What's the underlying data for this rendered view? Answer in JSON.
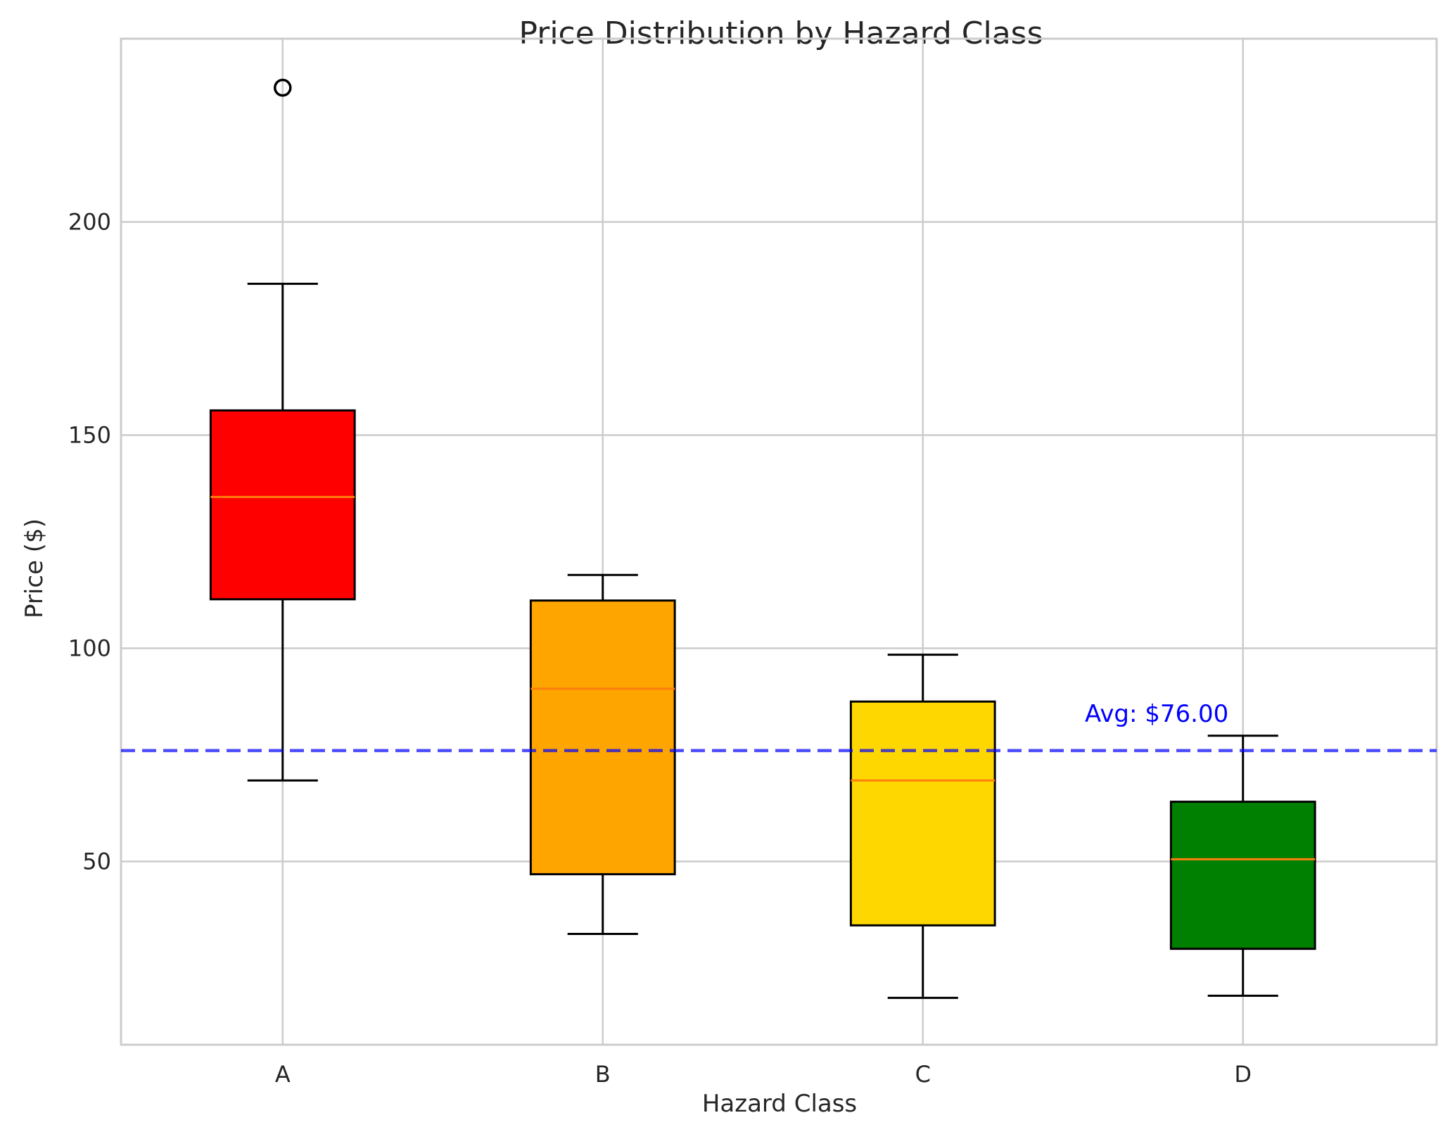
{
  "chart_data": {
    "type": "box",
    "title": "Price Distribution by Hazard Class",
    "xlabel": "Hazard Class",
    "ylabel": "Price ($)",
    "ylim": [
      7,
      243
    ],
    "yticks": [
      50,
      100,
      150,
      200
    ],
    "grid": true,
    "categories": [
      "A",
      "B",
      "C",
      "D"
    ],
    "boxes": [
      {
        "category": "A",
        "whisker_low": 69,
        "q1": 111.5,
        "median": 135.5,
        "q3": 155.8,
        "whisker_high": 185.5,
        "outliers": [
          231.5
        ],
        "color": "#ff0000"
      },
      {
        "category": "B",
        "whisker_low": 33,
        "q1": 47,
        "median": 90.5,
        "q3": 111.2,
        "whisker_high": 117.2,
        "outliers": [],
        "color": "#ffa500"
      },
      {
        "category": "C",
        "whisker_low": 18,
        "q1": 35,
        "median": 69,
        "q3": 87.5,
        "whisker_high": 98.5,
        "outliers": [],
        "color": "#ffd700"
      },
      {
        "category": "D",
        "whisker_low": 18.5,
        "q1": 29.5,
        "median": 50.5,
        "q3": 64,
        "whisker_high": 79.5,
        "outliers": [],
        "color": "#008000"
      }
    ],
    "reference_line": {
      "value": 76,
      "label": "Avg: $76.00",
      "color": "#0000ff",
      "style": "dashed"
    },
    "median_color": "#ff7f0e"
  }
}
